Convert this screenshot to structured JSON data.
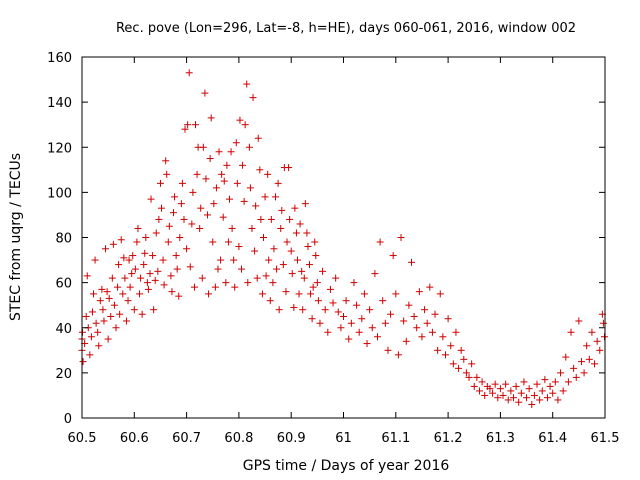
{
  "chart_data": {
    "type": "scatter",
    "title": "Rec. pove (Lon=296, Lat=-8, h=HE), days 060-061, 2016, window 002",
    "xlabel": "GPS time / Days of year 2016",
    "ylabel": "STEC from uqrg / TECUs",
    "xlim": [
      60.5,
      61.5
    ],
    "ylim": [
      0,
      160
    ],
    "xticks": [
      60.5,
      60.6,
      60.7,
      60.8,
      60.9,
      61,
      61.1,
      61.2,
      61.3,
      61.4,
      61.5
    ],
    "xtick_labels": [
      "60.5",
      "60.6",
      "60.7",
      "60.8",
      "60.9",
      "61",
      "61.1",
      "61.2",
      "61.3",
      "61.4",
      "61.5"
    ],
    "yticks": [
      0,
      20,
      40,
      60,
      80,
      100,
      120,
      140,
      160
    ],
    "ytick_labels": [
      "0",
      "20",
      "40",
      "60",
      "80",
      "100",
      "120",
      "140",
      "160"
    ],
    "marker": "+",
    "color": "#d00000",
    "grid": false,
    "series": [
      {
        "name": "STEC",
        "points": [
          [
            60.5,
            30
          ],
          [
            60.5,
            35
          ],
          [
            60.501,
            38
          ],
          [
            60.502,
            25
          ],
          [
            60.505,
            33
          ],
          [
            60.508,
            45
          ],
          [
            60.51,
            63
          ],
          [
            60.512,
            40
          ],
          [
            60.515,
            28
          ],
          [
            60.518,
            36
          ],
          [
            60.52,
            47
          ],
          [
            60.522,
            55
          ],
          [
            60.525,
            70
          ],
          [
            60.527,
            42
          ],
          [
            60.53,
            38
          ],
          [
            60.532,
            32
          ],
          [
            60.535,
            52
          ],
          [
            60.538,
            57
          ],
          [
            60.54,
            48
          ],
          [
            60.542,
            43
          ],
          [
            60.545,
            75
          ],
          [
            60.548,
            56
          ],
          [
            60.55,
            35
          ],
          [
            60.552,
            53
          ],
          [
            60.555,
            45
          ],
          [
            60.558,
            62
          ],
          [
            60.56,
            77
          ],
          [
            60.562,
            50
          ],
          [
            60.565,
            40
          ],
          [
            60.568,
            58
          ],
          [
            60.57,
            68
          ],
          [
            60.572,
            46
          ],
          [
            60.575,
            79
          ],
          [
            60.578,
            55
          ],
          [
            60.58,
            71
          ],
          [
            60.582,
            62
          ],
          [
            60.585,
            43
          ],
          [
            60.588,
            52
          ],
          [
            60.59,
            70
          ],
          [
            60.592,
            58
          ],
          [
            60.595,
            64
          ],
          [
            60.597,
            72
          ],
          [
            60.6,
            48
          ],
          [
            60.602,
            66
          ],
          [
            60.605,
            78
          ],
          [
            60.607,
            84
          ],
          [
            60.61,
            55
          ],
          [
            60.612,
            62
          ],
          [
            60.615,
            46
          ],
          [
            60.618,
            68
          ],
          [
            60.62,
            73
          ],
          [
            60.622,
            80
          ],
          [
            60.625,
            60
          ],
          [
            60.627,
            57
          ],
          [
            60.63,
            64
          ],
          [
            60.632,
            97
          ],
          [
            60.635,
            72
          ],
          [
            60.637,
            48
          ],
          [
            60.64,
            61
          ],
          [
            60.642,
            82
          ],
          [
            60.645,
            65
          ],
          [
            60.647,
            88
          ],
          [
            60.65,
            104
          ],
          [
            60.652,
            93
          ],
          [
            60.655,
            70
          ],
          [
            60.657,
            59
          ],
          [
            60.66,
            114
          ],
          [
            60.662,
            108
          ],
          [
            60.665,
            78
          ],
          [
            60.667,
            85
          ],
          [
            60.67,
            63
          ],
          [
            60.672,
            56
          ],
          [
            60.675,
            91
          ],
          [
            60.677,
            98
          ],
          [
            60.68,
            72
          ],
          [
            60.682,
            66
          ],
          [
            60.685,
            54
          ],
          [
            60.687,
            80
          ],
          [
            60.69,
            95
          ],
          [
            60.692,
            104
          ],
          [
            60.695,
            88
          ],
          [
            60.697,
            128
          ],
          [
            60.7,
            75
          ],
          [
            60.702,
            130
          ],
          [
            60.705,
            153
          ],
          [
            60.707,
            67
          ],
          [
            60.71,
            86
          ],
          [
            60.712,
            100
          ],
          [
            60.715,
            58
          ],
          [
            60.717,
            130
          ],
          [
            60.72,
            108
          ],
          [
            60.722,
            120
          ],
          [
            60.725,
            84
          ],
          [
            60.727,
            93
          ],
          [
            60.73,
            62
          ],
          [
            60.732,
            120
          ],
          [
            60.735,
            144
          ],
          [
            60.737,
            106
          ],
          [
            60.74,
            90
          ],
          [
            60.742,
            55
          ],
          [
            60.745,
            115
          ],
          [
            60.747,
            133
          ],
          [
            60.75,
            78
          ],
          [
            60.752,
            95
          ],
          [
            60.755,
            58
          ],
          [
            60.757,
            102
          ],
          [
            60.76,
            66
          ],
          [
            60.762,
            118
          ],
          [
            60.765,
            70
          ],
          [
            60.767,
            108
          ],
          [
            60.77,
            89
          ],
          [
            60.772,
            105
          ],
          [
            60.775,
            60
          ],
          [
            60.777,
            112
          ],
          [
            60.78,
            78
          ],
          [
            60.782,
            97
          ],
          [
            60.785,
            118
          ],
          [
            60.787,
            84
          ],
          [
            60.79,
            70
          ],
          [
            60.792,
            58
          ],
          [
            60.795,
            122
          ],
          [
            60.797,
            104
          ],
          [
            60.8,
            76
          ],
          [
            60.802,
            132
          ],
          [
            60.805,
            66
          ],
          [
            60.807,
            112
          ],
          [
            60.81,
            96
          ],
          [
            60.812,
            130
          ],
          [
            60.815,
            148
          ],
          [
            60.817,
            60
          ],
          [
            60.82,
            120
          ],
          [
            60.822,
            102
          ],
          [
            60.825,
            84
          ],
          [
            60.827,
            142
          ],
          [
            60.83,
            74
          ],
          [
            60.832,
            94
          ],
          [
            60.835,
            62
          ],
          [
            60.837,
            124
          ],
          [
            60.84,
            110
          ],
          [
            60.842,
            88
          ],
          [
            60.845,
            55
          ],
          [
            60.847,
            80
          ],
          [
            60.85,
            98
          ],
          [
            60.852,
            63
          ],
          [
            60.855,
            108
          ],
          [
            60.857,
            70
          ],
          [
            60.86,
            52
          ],
          [
            60.862,
            88
          ],
          [
            60.865,
            60
          ],
          [
            60.867,
            75
          ],
          [
            60.87,
            98
          ],
          [
            60.872,
            66
          ],
          [
            60.875,
            104
          ],
          [
            60.877,
            48
          ],
          [
            60.88,
            84
          ],
          [
            60.882,
            92
          ],
          [
            60.885,
            68
          ],
          [
            60.887,
            111
          ],
          [
            60.89,
            56
          ],
          [
            60.892,
            78
          ],
          [
            60.895,
            111
          ],
          [
            60.897,
            88
          ],
          [
            60.9,
            74
          ],
          [
            60.902,
            64
          ],
          [
            60.905,
            49
          ],
          [
            60.907,
            93
          ],
          [
            60.91,
            82
          ],
          [
            60.912,
            70
          ],
          [
            60.915,
            55
          ],
          [
            60.917,
            86
          ],
          [
            60.92,
            65
          ],
          [
            60.922,
            48
          ],
          [
            60.925,
            62
          ],
          [
            60.927,
            95
          ],
          [
            60.93,
            82
          ],
          [
            60.932,
            76
          ],
          [
            60.935,
            68
          ],
          [
            60.937,
            55
          ],
          [
            60.94,
            44
          ],
          [
            60.942,
            58
          ],
          [
            60.945,
            78
          ],
          [
            60.947,
            72
          ],
          [
            60.95,
            60
          ],
          [
            60.952,
            52
          ],
          [
            60.955,
            42
          ],
          [
            60.96,
            65
          ],
          [
            60.965,
            48
          ],
          [
            60.97,
            38
          ],
          [
            60.975,
            57
          ],
          [
            60.98,
            51
          ],
          [
            60.985,
            62
          ],
          [
            60.99,
            47
          ],
          [
            60.995,
            40
          ],
          [
            61.0,
            45
          ],
          [
            61.005,
            52
          ],
          [
            61.01,
            35
          ],
          [
            61.015,
            42
          ],
          [
            61.02,
            60
          ],
          [
            61.025,
            50
          ],
          [
            61.03,
            38
          ],
          [
            61.035,
            44
          ],
          [
            61.04,
            55
          ],
          [
            61.045,
            33
          ],
          [
            61.05,
            48
          ],
          [
            61.055,
            40
          ],
          [
            61.06,
            64
          ],
          [
            61.065,
            36
          ],
          [
            61.07,
            78
          ],
          [
            61.075,
            52
          ],
          [
            61.08,
            42
          ],
          [
            61.085,
            30
          ],
          [
            61.09,
            46
          ],
          [
            61.095,
            72
          ],
          [
            61.1,
            55
          ],
          [
            61.105,
            28
          ],
          [
            61.11,
            80
          ],
          [
            61.115,
            43
          ],
          [
            61.12,
            34
          ],
          [
            61.125,
            50
          ],
          [
            61.13,
            69
          ],
          [
            61.135,
            45
          ],
          [
            61.14,
            40
          ],
          [
            61.145,
            56
          ],
          [
            61.15,
            36
          ],
          [
            61.155,
            48
          ],
          [
            61.16,
            42
          ],
          [
            61.165,
            58
          ],
          [
            61.17,
            38
          ],
          [
            61.175,
            46
          ],
          [
            61.18,
            30
          ],
          [
            61.185,
            55
          ],
          [
            61.19,
            36
          ],
          [
            61.195,
            28
          ],
          [
            61.2,
            44
          ],
          [
            61.205,
            32
          ],
          [
            61.21,
            24
          ],
          [
            61.215,
            38
          ],
          [
            61.22,
            22
          ],
          [
            61.225,
            30
          ],
          [
            61.23,
            26
          ],
          [
            61.235,
            20
          ],
          [
            61.24,
            18
          ],
          [
            61.245,
            24
          ],
          [
            61.25,
            14
          ],
          [
            61.255,
            18
          ],
          [
            61.26,
            12
          ],
          [
            61.265,
            16
          ],
          [
            61.27,
            10
          ],
          [
            61.275,
            14
          ],
          [
            61.28,
            13
          ],
          [
            61.285,
            11
          ],
          [
            61.29,
            15
          ],
          [
            61.295,
            9
          ],
          [
            61.3,
            13
          ],
          [
            61.305,
            10
          ],
          [
            61.31,
            15
          ],
          [
            61.315,
            8
          ],
          [
            61.32,
            12
          ],
          [
            61.325,
            9
          ],
          [
            61.33,
            14
          ],
          [
            61.335,
            7
          ],
          [
            61.34,
            11
          ],
          [
            61.345,
            16
          ],
          [
            61.35,
            9
          ],
          [
            61.355,
            13
          ],
          [
            61.36,
            6
          ],
          [
            61.365,
            10
          ],
          [
            61.37,
            15
          ],
          [
            61.375,
            8
          ],
          [
            61.38,
            12
          ],
          [
            61.385,
            17
          ],
          [
            61.39,
            9
          ],
          [
            61.395,
            14
          ],
          [
            61.4,
            11
          ],
          [
            61.405,
            16
          ],
          [
            61.41,
            8
          ],
          [
            61.415,
            20
          ],
          [
            61.42,
            12
          ],
          [
            61.425,
            27
          ],
          [
            61.43,
            16
          ],
          [
            61.435,
            38
          ],
          [
            61.44,
            22
          ],
          [
            61.445,
            18
          ],
          [
            61.45,
            43
          ],
          [
            61.455,
            25
          ],
          [
            61.46,
            20
          ],
          [
            61.465,
            32
          ],
          [
            61.47,
            26
          ],
          [
            61.475,
            38
          ],
          [
            61.48,
            24
          ],
          [
            61.485,
            34
          ],
          [
            61.49,
            30
          ],
          [
            61.495,
            46
          ],
          [
            61.497,
            42
          ],
          [
            61.499,
            36
          ]
        ]
      }
    ]
  }
}
